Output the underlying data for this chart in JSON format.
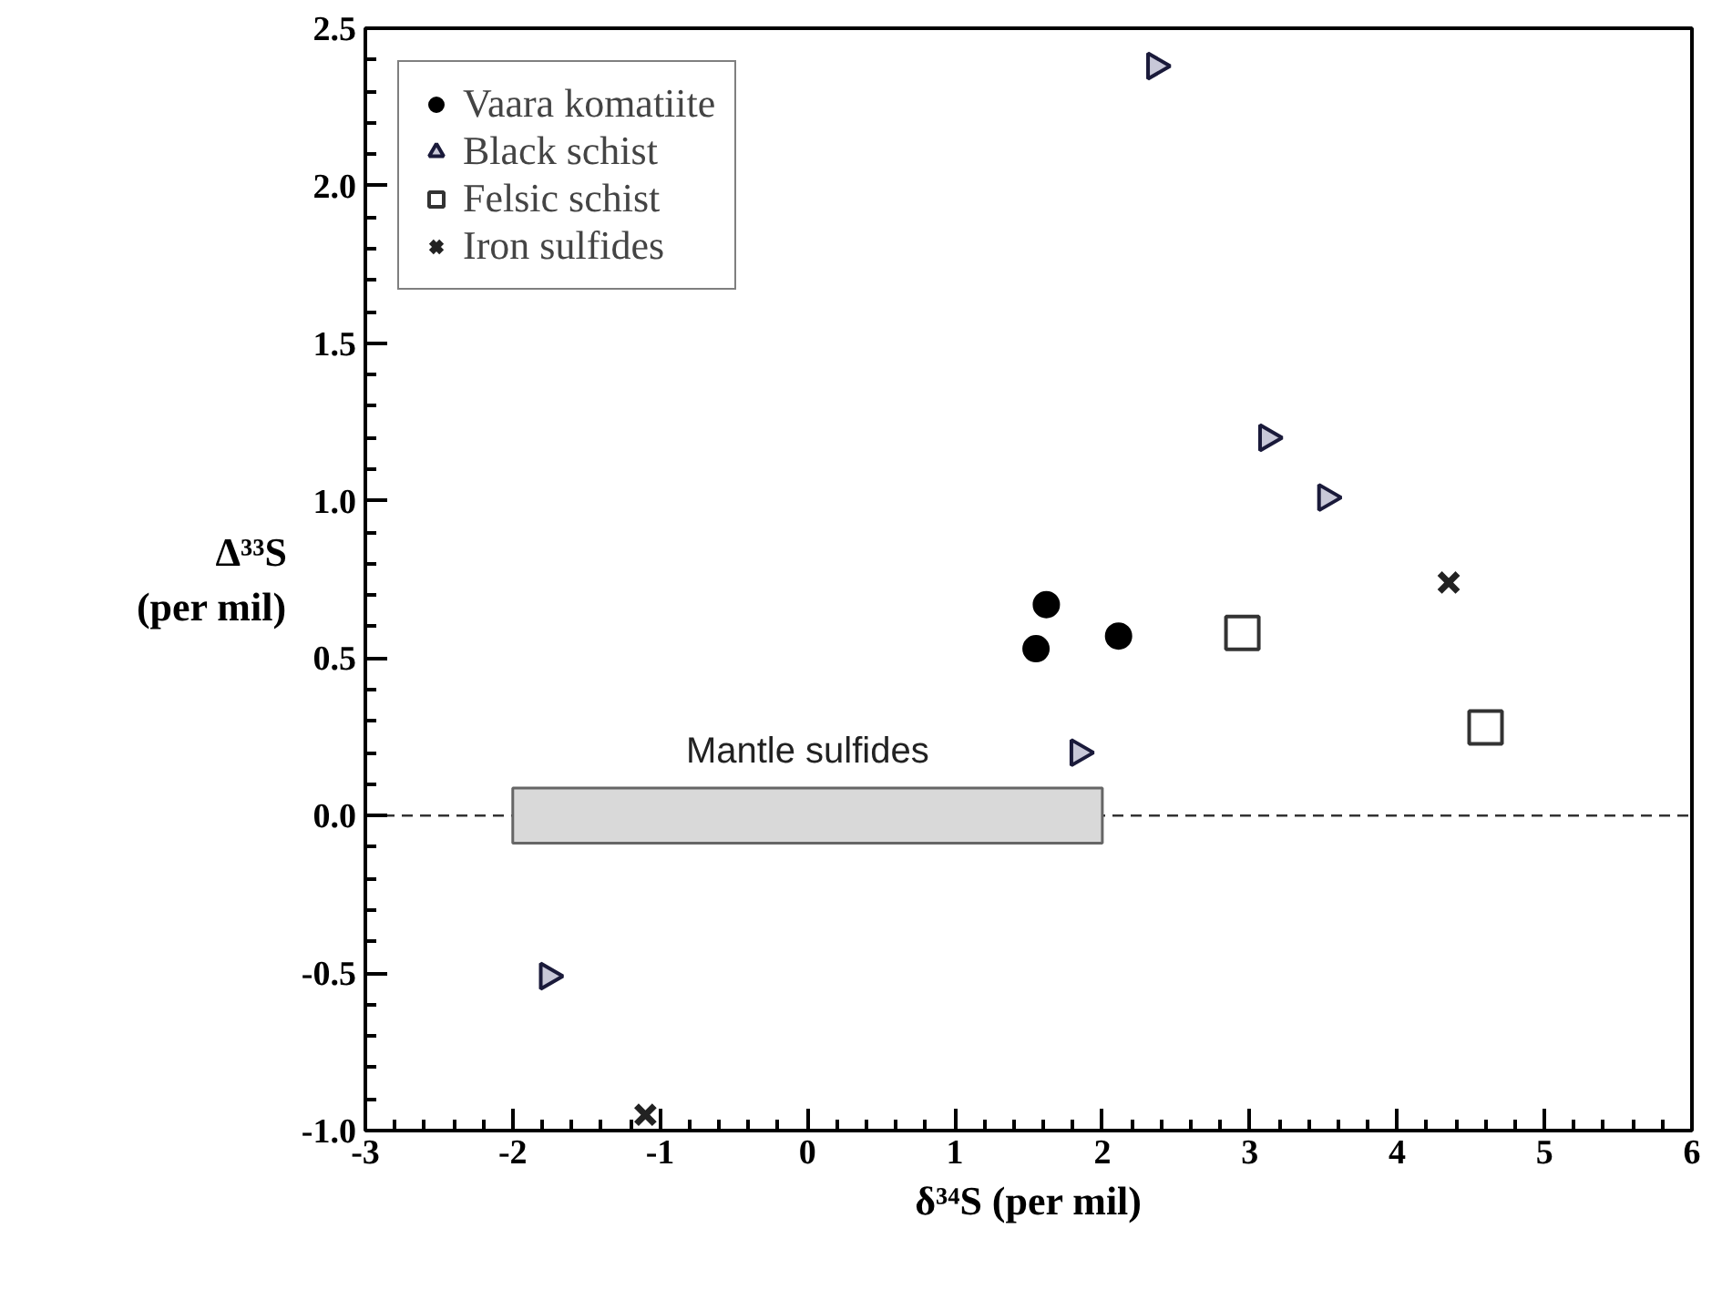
{
  "chart_data": {
    "type": "scatter",
    "xlabel": "δ³⁴S (per mil)",
    "ylabel": "Δ³³S\n(per mil)",
    "xlim": [
      -3,
      6
    ],
    "xticks": [
      -3,
      -2,
      -1,
      0,
      1,
      2,
      3,
      4,
      5,
      6
    ],
    "ylim": [
      -1,
      2.5
    ],
    "yticks": [
      {
        "value": -1,
        "label": "-1.0"
      },
      {
        "value": -0.5,
        "label": "-0.5"
      },
      {
        "value": 0,
        "label": "0.0"
      },
      {
        "value": 0.5,
        "label": "0.5"
      },
      {
        "value": 1,
        "label": "1.0"
      },
      {
        "value": 1.5,
        "label": "1.5"
      },
      {
        "value": 2,
        "label": "2.0"
      },
      {
        "value": 2.5,
        "label": "2.5"
      }
    ],
    "grid": false,
    "legend": "top left",
    "series": [
      {
        "name": "Vaara komatiite",
        "color": "#000000",
        "marker": "circle",
        "x": [
          1.62,
          1.55,
          2.11
        ],
        "values": [
          0.67,
          0.53,
          0.57
        ]
      },
      {
        "name": "Black schist",
        "color": "#1a1a3a",
        "marker": "triangle",
        "x": [
          2.36,
          3.12,
          3.52,
          1.84,
          -1.76
        ],
        "values": [
          2.38,
          1.2,
          1.01,
          0.2,
          -0.51
        ]
      },
      {
        "name": "Felsic schist",
        "color": "#333333",
        "marker": "square",
        "x": [
          2.95,
          4.6
        ],
        "values": [
          0.58,
          0.28
        ]
      },
      {
        "name": "Iron sulfides",
        "color": "#222222",
        "marker": "cross",
        "x": [
          4.35,
          -1.1
        ],
        "values": [
          0.74,
          -0.95
        ]
      }
    ],
    "ref_lines": [
      {
        "axis": "y",
        "value": 0,
        "line_style": "dashed",
        "color": "#333333"
      }
    ],
    "bands": [
      {
        "axis": "x",
        "from": -2,
        "to": 2,
        "label": "Mantle sulfides",
        "color": "#d9d9d9"
      }
    ]
  }
}
